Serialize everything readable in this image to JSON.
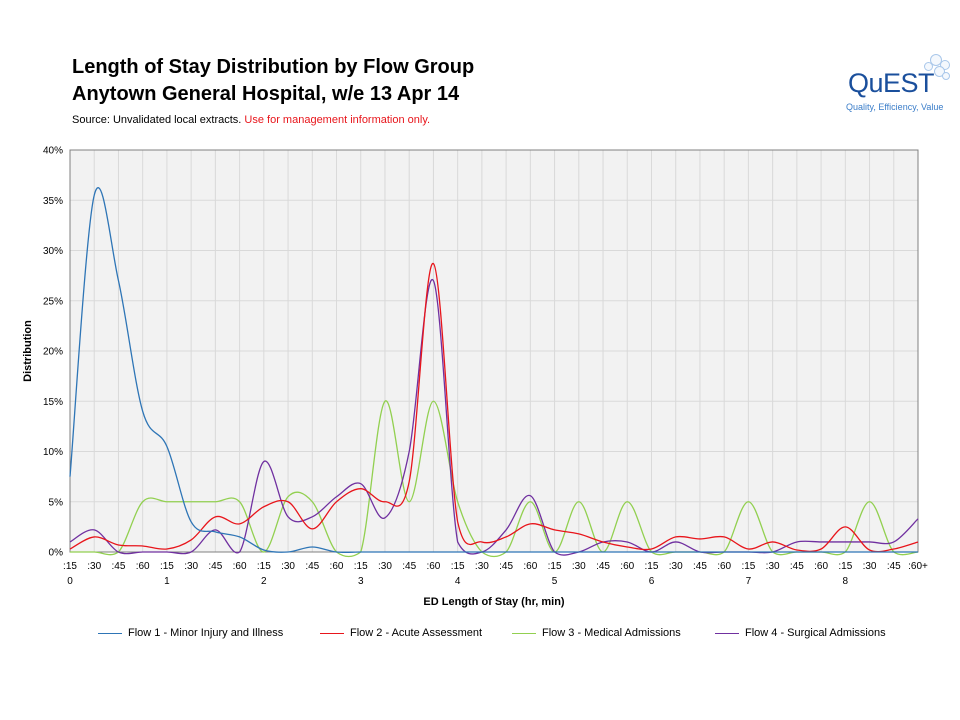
{
  "header": {
    "title_line1": "Length of Stay Distribution by Flow Group",
    "title_line2": "Anytown General Hospital, w/e 13 Apr 14",
    "source_prefix": "Source:  Unvalidated local extracts. ",
    "source_warning": "Use for management  information only."
  },
  "logo": {
    "text": "QuEST",
    "tagline": "Quality, Efficiency, Value",
    "brand_color": "#1a4f9c"
  },
  "chart_data": {
    "type": "line",
    "smooth": true,
    "title": "",
    "xlabel": "ED Length of Stay (hr, min)",
    "ylabel": "Distribution",
    "ylim": [
      0,
      0.4
    ],
    "yticks": [
      "0%",
      "5%",
      "10%",
      "15%",
      "20%",
      "25%",
      "30%",
      "35%",
      "40%"
    ],
    "grid": true,
    "legend_position": "bottom",
    "categories": [
      ":15",
      ":30",
      ":45",
      ":60",
      ":15",
      ":30",
      ":45",
      ":60",
      ":15",
      ":30",
      ":45",
      ":60",
      ":15",
      ":30",
      ":45",
      ":60",
      ":15",
      ":30",
      ":45",
      ":60",
      ":15",
      ":30",
      ":45",
      ":60",
      ":15",
      ":30",
      ":45",
      ":60",
      ":15",
      ":30",
      ":45",
      ":60",
      ":15",
      ":30",
      ":45",
      ":60+"
    ],
    "hour_labels": [
      "0",
      "1",
      "2",
      "3",
      "4",
      "5",
      "6",
      "7",
      "8"
    ],
    "series": [
      {
        "name": "Flow 1 - Minor Injury and Illness",
        "color": "#2e75b6",
        "values": [
          0.075,
          0.355,
          0.27,
          0.14,
          0.105,
          0.03,
          0.02,
          0.015,
          0.002,
          0.0,
          0.005,
          0.0,
          0.0,
          0.0,
          0.0,
          0.0,
          0.0,
          0.0,
          0.0,
          0.0,
          0.0,
          0.0,
          0.0,
          0.0,
          0.0,
          0.0,
          0.0,
          0.0,
          0.0,
          0.0,
          0.0,
          0.0,
          0.0,
          0.0,
          0.0,
          0.0
        ]
      },
      {
        "name": "Flow 2 - Acute Assessment",
        "color": "#e8151b",
        "values": [
          0.003,
          0.015,
          0.007,
          0.006,
          0.003,
          0.012,
          0.035,
          0.028,
          0.045,
          0.05,
          0.023,
          0.05,
          0.063,
          0.05,
          0.07,
          0.287,
          0.03,
          0.01,
          0.015,
          0.028,
          0.022,
          0.018,
          0.01,
          0.005,
          0.003,
          0.015,
          0.013,
          0.015,
          0.003,
          0.01,
          0.002,
          0.003,
          0.025,
          0.002,
          0.003,
          0.01
        ]
      },
      {
        "name": "Flow 3 - Medical Admissions",
        "color": "#92d050",
        "values": [
          0.0,
          0.0,
          0.0,
          0.05,
          0.05,
          0.05,
          0.05,
          0.05,
          0.0,
          0.055,
          0.05,
          0.0,
          0.0,
          0.15,
          0.05,
          0.15,
          0.05,
          0.0,
          0.0,
          0.05,
          0.0,
          0.05,
          0.0,
          0.05,
          0.0,
          0.0,
          0.0,
          0.0,
          0.05,
          0.0,
          0.0,
          0.0,
          0.0,
          0.05,
          0.0,
          0.0
        ]
      },
      {
        "name": "Flow 4 - Surgical Admissions",
        "color": "#7030a0",
        "values": [
          0.01,
          0.022,
          0.0,
          0.0,
          0.0,
          0.0,
          0.022,
          0.0,
          0.09,
          0.035,
          0.035,
          0.055,
          0.068,
          0.034,
          0.1,
          0.27,
          0.01,
          0.0,
          0.022,
          0.056,
          0.0,
          0.0,
          0.01,
          0.01,
          0.0,
          0.01,
          0.0,
          0.0,
          0.0,
          0.0,
          0.01,
          0.01,
          0.01,
          0.01,
          0.01,
          0.033
        ]
      }
    ]
  }
}
